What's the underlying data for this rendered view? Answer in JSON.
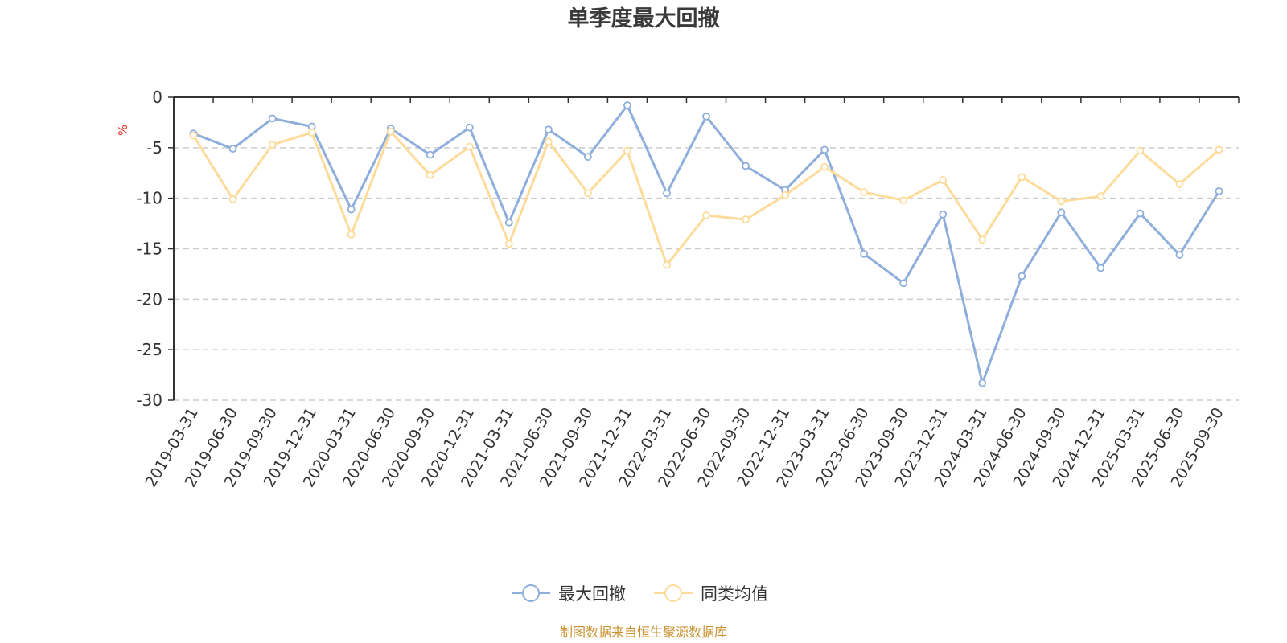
{
  "chart_data": {
    "type": "line",
    "title": "单季度最大回撤",
    "ylabel": "%",
    "xlabel": "",
    "ylim": [
      -30,
      0
    ],
    "yticks": [
      0,
      -5,
      -10,
      -15,
      -20,
      -25,
      -30
    ],
    "grid": true,
    "legend_position": "bottom-center",
    "categories": [
      "2019-03-31",
      "2019-06-30",
      "2019-09-30",
      "2019-12-31",
      "2020-03-31",
      "2020-06-30",
      "2020-09-30",
      "2020-12-31",
      "2021-03-31",
      "2021-06-30",
      "2021-09-30",
      "2021-12-31",
      "2022-03-31",
      "2022-06-30",
      "2022-09-30",
      "2022-12-31",
      "2023-03-31",
      "2023-06-30",
      "2023-09-30",
      "2023-12-31",
      "2024-03-31",
      "2024-06-30",
      "2024-09-30",
      "2024-12-31",
      "2025-03-31",
      "2025-06-30",
      "2025-09-30"
    ],
    "series": [
      {
        "name": "最大回撤",
        "color": "#8eaedb",
        "values": [
          -3.6,
          -5.1,
          -2.1,
          -2.9,
          -11.1,
          -3.1,
          -5.7,
          -3.0,
          -12.4,
          -3.2,
          -5.9,
          -0.8,
          -9.5,
          -1.9,
          -6.8,
          -9.2,
          -5.2,
          -15.5,
          -18.4,
          -11.6,
          -28.3,
          -17.7,
          -11.4,
          -16.9,
          -11.5,
          -15.6,
          -9.3
        ]
      },
      {
        "name": "同类均值",
        "color": "#fddc9b",
        "values": [
          -3.8,
          -10.1,
          -4.7,
          -3.5,
          -13.6,
          -3.4,
          -7.7,
          -4.9,
          -14.5,
          -4.4,
          -9.5,
          -5.3,
          -16.6,
          -11.7,
          -12.1,
          -9.7,
          -6.9,
          -9.4,
          -10.2,
          -8.2,
          -14.1,
          -7.9,
          -10.3,
          -9.8,
          -5.3,
          -8.6,
          -5.2
        ]
      }
    ],
    "source": "制图数据来自恒生聚源数据库"
  }
}
